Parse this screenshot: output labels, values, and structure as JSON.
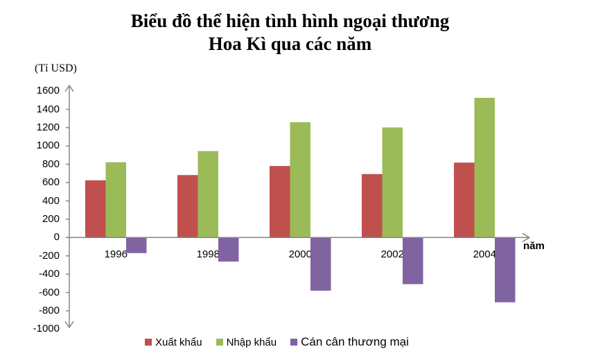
{
  "title_line1": "Biểu đồ thể hiện tình hình ngoại thương",
  "title_line2": "Hoa Kì qua các năm",
  "y_unit": "(Tỉ USD)",
  "x_unit": "năm",
  "y_ticks": [
    "1600",
    "1400",
    "1200",
    "1000",
    "800",
    "600",
    "400",
    "200",
    "0",
    "-200",
    "-400",
    "-600",
    "-800",
    "-1000"
  ],
  "legend": [
    {
      "label": "Xuất khẩu",
      "color": "#C0504D"
    },
    {
      "label": "Nhập khẩu",
      "color": "#9BBB59"
    },
    {
      "label": "Cán cân thương mại",
      "color": "#8064A2"
    }
  ],
  "chart_data": {
    "type": "bar",
    "title": "Biểu đồ thể hiện tình hình ngoại thương Hoa Kì qua các năm",
    "xlabel": "năm",
    "ylabel": "(Tỉ USD)",
    "categories": [
      "1996",
      "1998",
      "2000",
      "2002",
      "2004"
    ],
    "series": [
      {
        "name": "Xuất khẩu",
        "color": "#C0504D",
        "values": [
          625,
          682,
          781,
          693,
          818
        ]
      },
      {
        "name": "Nhập khẩu",
        "color": "#9BBB59",
        "values": [
          822,
          944,
          1259,
          1202,
          1525
        ]
      },
      {
        "name": "Cán cân thương mại",
        "color": "#8064A2",
        "values": [
          -170,
          -262,
          -580,
          -509,
          -707
        ]
      }
    ],
    "ylim": [
      -1000,
      1600
    ],
    "ytick_step": 200,
    "grid": false,
    "legend_position": "bottom"
  }
}
